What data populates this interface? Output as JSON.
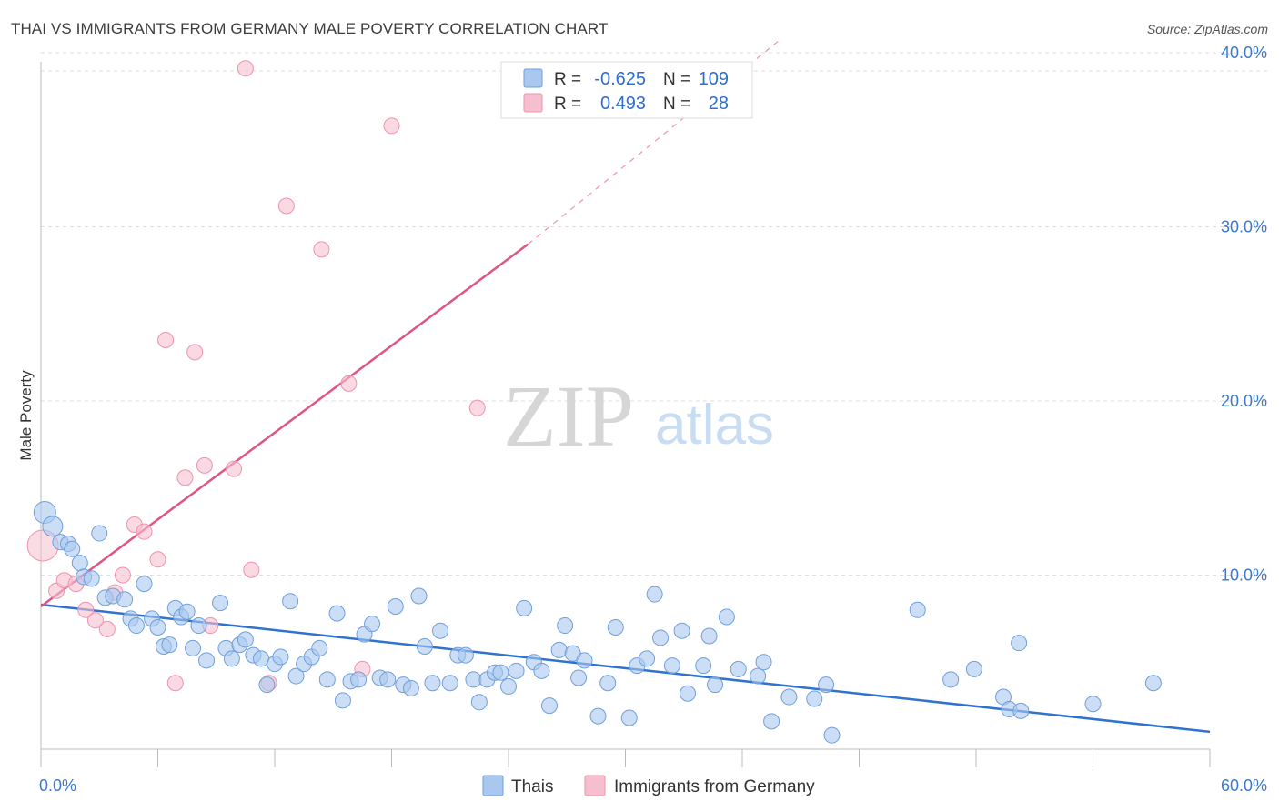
{
  "title": "THAI VS IMMIGRANTS FROM GERMANY MALE POVERTY CORRELATION CHART",
  "source": "Source: ZipAtlas.com",
  "watermark": {
    "zip": "ZIP",
    "atlas": "atlas"
  },
  "colors": {
    "thais_fill": "#a9c8ef",
    "thais_stroke": "#6f9fdb",
    "thais_line": "#2f72d0",
    "germany_fill": "#f6bfd0",
    "germany_stroke": "#ee93ad",
    "germany_line": "#e05587",
    "tick_text": "#3b78cf",
    "grid": "#dddddd"
  },
  "legend": {
    "rows": [
      {
        "r_label": "R =",
        "r_value": "-0.625",
        "n_label": "N =",
        "n_value": "109"
      },
      {
        "r_label": "R =",
        "r_value": "0.493",
        "n_label": "N =",
        "n_value": "28"
      }
    ]
  },
  "chart_data": {
    "type": "scatter",
    "title": "THAI VS IMMIGRANTS FROM GERMANY MALE POVERTY CORRELATION CHART",
    "xlabel": "",
    "ylabel": "Male Poverty",
    "xlim": [
      0,
      60
    ],
    "ylim": [
      0,
      41
    ],
    "x_tick_labels": [
      "0.0%",
      "60.0%"
    ],
    "y_ticks": [
      10,
      20,
      30,
      40
    ],
    "y_tick_labels": [
      "10.0%",
      "20.0%",
      "30.0%",
      "40.0%"
    ],
    "grid": "horizontal dashed",
    "legend_position": "top-center",
    "series": [
      {
        "name": "Thais",
        "r": -0.625,
        "n": 109,
        "trend": {
          "x": [
            0,
            60
          ],
          "y": [
            8.3,
            1.0
          ],
          "style": "solid"
        },
        "points": [
          [
            0.2,
            13.6
          ],
          [
            0.6,
            12.8
          ],
          [
            1.0,
            11.9
          ],
          [
            1.4,
            11.8
          ],
          [
            1.6,
            11.5
          ],
          [
            2.0,
            10.7
          ],
          [
            2.2,
            9.9
          ],
          [
            2.6,
            9.8
          ],
          [
            3.0,
            12.4
          ],
          [
            3.3,
            8.7
          ],
          [
            3.7,
            8.8
          ],
          [
            4.3,
            8.6
          ],
          [
            4.6,
            7.5
          ],
          [
            4.9,
            7.1
          ],
          [
            5.3,
            9.5
          ],
          [
            5.7,
            7.5
          ],
          [
            6.0,
            7.0
          ],
          [
            6.3,
            5.9
          ],
          [
            6.6,
            6.0
          ],
          [
            6.9,
            8.1
          ],
          [
            7.2,
            7.6
          ],
          [
            7.5,
            7.9
          ],
          [
            7.8,
            5.8
          ],
          [
            8.1,
            7.1
          ],
          [
            8.5,
            5.1
          ],
          [
            9.2,
            8.4
          ],
          [
            9.5,
            5.8
          ],
          [
            9.8,
            5.2
          ],
          [
            10.2,
            6.0
          ],
          [
            10.5,
            6.3
          ],
          [
            10.9,
            5.4
          ],
          [
            11.3,
            5.2
          ],
          [
            11.6,
            3.7
          ],
          [
            12.0,
            4.9
          ],
          [
            12.3,
            5.3
          ],
          [
            12.8,
            8.5
          ],
          [
            13.1,
            4.2
          ],
          [
            13.5,
            4.9
          ],
          [
            13.9,
            5.3
          ],
          [
            14.3,
            5.8
          ],
          [
            14.7,
            4.0
          ],
          [
            15.2,
            7.8
          ],
          [
            15.5,
            2.8
          ],
          [
            15.9,
            3.9
          ],
          [
            16.3,
            4.0
          ],
          [
            16.6,
            6.6
          ],
          [
            17.0,
            7.2
          ],
          [
            17.4,
            4.1
          ],
          [
            17.8,
            4.0
          ],
          [
            18.2,
            8.2
          ],
          [
            18.6,
            3.7
          ],
          [
            19.0,
            3.5
          ],
          [
            19.4,
            8.8
          ],
          [
            19.7,
            5.9
          ],
          [
            20.1,
            3.8
          ],
          [
            20.5,
            6.8
          ],
          [
            21.0,
            3.8
          ],
          [
            21.4,
            5.4
          ],
          [
            21.8,
            5.4
          ],
          [
            22.2,
            4.0
          ],
          [
            22.5,
            2.7
          ],
          [
            22.9,
            4.0
          ],
          [
            23.3,
            4.4
          ],
          [
            23.6,
            4.4
          ],
          [
            24.0,
            3.6
          ],
          [
            24.4,
            4.5
          ],
          [
            24.8,
            8.1
          ],
          [
            25.3,
            5.0
          ],
          [
            25.7,
            4.5
          ],
          [
            26.1,
            2.5
          ],
          [
            26.6,
            5.7
          ],
          [
            26.9,
            7.1
          ],
          [
            27.3,
            5.5
          ],
          [
            27.6,
            4.1
          ],
          [
            27.9,
            5.1
          ],
          [
            28.6,
            1.9
          ],
          [
            29.1,
            3.8
          ],
          [
            29.5,
            7.0
          ],
          [
            30.2,
            1.8
          ],
          [
            30.6,
            4.8
          ],
          [
            31.1,
            5.2
          ],
          [
            31.5,
            8.9
          ],
          [
            31.8,
            6.4
          ],
          [
            32.4,
            4.8
          ],
          [
            32.9,
            6.8
          ],
          [
            33.2,
            3.2
          ],
          [
            34.0,
            4.8
          ],
          [
            34.3,
            6.5
          ],
          [
            34.6,
            3.7
          ],
          [
            35.2,
            7.6
          ],
          [
            35.8,
            4.6
          ],
          [
            36.8,
            4.2
          ],
          [
            37.1,
            5.0
          ],
          [
            37.5,
            1.6
          ],
          [
            38.4,
            3.0
          ],
          [
            39.7,
            2.9
          ],
          [
            40.3,
            3.7
          ],
          [
            40.6,
            0.8
          ],
          [
            45.0,
            8.0
          ],
          [
            46.7,
            4.0
          ],
          [
            47.9,
            4.6
          ],
          [
            49.4,
            3.0
          ],
          [
            49.7,
            2.3
          ],
          [
            50.2,
            6.1
          ],
          [
            50.3,
            2.2
          ],
          [
            54.0,
            2.6
          ],
          [
            57.1,
            3.8
          ]
        ]
      },
      {
        "name": "Immigrants from Germany",
        "r": 0.493,
        "n": 28,
        "trend": {
          "x": [
            0,
            25
          ],
          "y": [
            8.2,
            29.0
          ],
          "style": "solid",
          "dashed_extension_to": [
            38,
            40.8
          ]
        },
        "points": [
          [
            0.1,
            11.7
          ],
          [
            0.8,
            9.1
          ],
          [
            1.2,
            9.7
          ],
          [
            1.8,
            9.5
          ],
          [
            2.3,
            8.0
          ],
          [
            2.8,
            7.4
          ],
          [
            3.4,
            6.9
          ],
          [
            3.8,
            9.0
          ],
          [
            4.2,
            10.0
          ],
          [
            4.8,
            12.9
          ],
          [
            5.3,
            12.5
          ],
          [
            6.0,
            10.9
          ],
          [
            6.4,
            23.5
          ],
          [
            6.9,
            3.8
          ],
          [
            7.4,
            15.6
          ],
          [
            7.9,
            22.8
          ],
          [
            8.4,
            16.3
          ],
          [
            8.7,
            7.1
          ],
          [
            9.9,
            16.1
          ],
          [
            10.5,
            39.1
          ],
          [
            10.8,
            10.3
          ],
          [
            11.7,
            3.8
          ],
          [
            12.6,
            31.2
          ],
          [
            14.4,
            28.7
          ],
          [
            15.8,
            21.0
          ],
          [
            16.5,
            4.6
          ],
          [
            18.0,
            35.8
          ],
          [
            22.4,
            19.6
          ]
        ]
      }
    ],
    "bottom_legend": [
      "Thais",
      "Immigrants from Germany"
    ]
  }
}
